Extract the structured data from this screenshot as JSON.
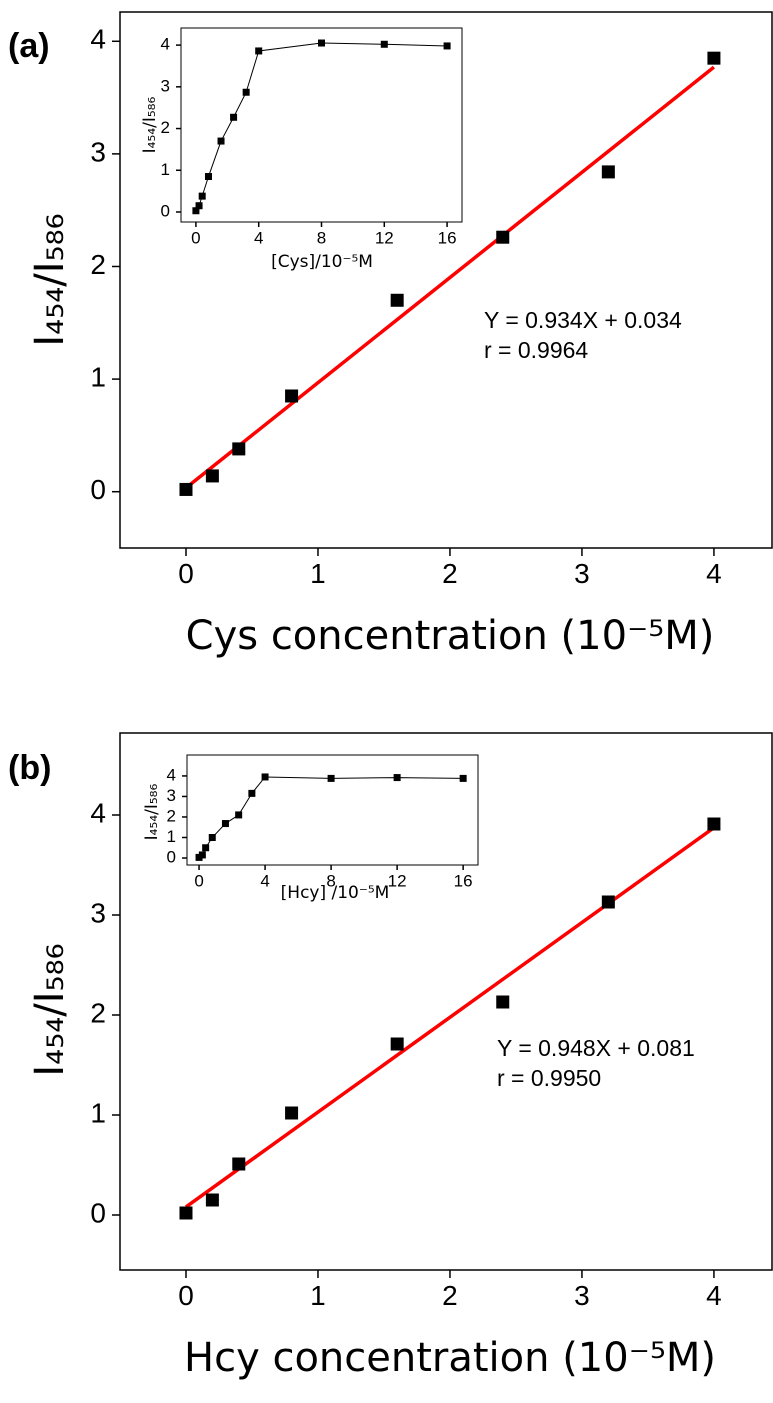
{
  "chart_data": [
    {
      "type": "scatter",
      "panel": "(a)",
      "xlabel": "Cys concentration (10⁻⁵M)",
      "ylabel": "I₄₅₄/I₅₈₆",
      "x": [
        0,
        0.2,
        0.4,
        0.8,
        1.6,
        2.4,
        3.2,
        4
      ],
      "values": [
        0.02,
        0.14,
        0.38,
        0.85,
        1.7,
        2.26,
        2.84,
        3.85
      ],
      "color": "#000000",
      "fit": {
        "slope": 0.934,
        "intercept": 0.034,
        "color": "#ff0000"
      },
      "annotations": [
        "Y = 0.934X + 0.034",
        "r = 0.9964"
      ],
      "xlim": [
        -0.5,
        4.44
      ],
      "xticks": [
        0,
        1,
        2,
        3,
        4
      ],
      "ylim": [
        -0.5,
        4.26
      ],
      "yticks": [
        0,
        1,
        2,
        3,
        4
      ]
    },
    {
      "type": "line",
      "xlabel": "[Cys]/10⁻⁵M",
      "ylabel": "I₄₅₄/I₅₈₆",
      "x": [
        0,
        0.2,
        0.4,
        0.8,
        1.6,
        2.4,
        3.2,
        4,
        8,
        12,
        16
      ],
      "values": [
        0.03,
        0.15,
        0.38,
        0.85,
        1.7,
        2.27,
        2.87,
        3.86,
        4.05,
        4.02,
        3.98
      ],
      "color": "#000000",
      "xlim": [
        -0.95,
        16.95
      ],
      "xticks": [
        0,
        4,
        8,
        12,
        16
      ],
      "ylim": [
        -0.24,
        4.41
      ],
      "yticks": [
        0,
        1,
        2,
        3,
        4
      ]
    },
    {
      "type": "scatter",
      "panel": "(b)",
      "xlabel": "Hcy concentration (10⁻⁵M)",
      "ylabel": "I₄₅₄/I₅₈₆",
      "x": [
        0,
        0.2,
        0.4,
        0.8,
        1.6,
        2.4,
        3.2,
        4
      ],
      "values": [
        0.02,
        0.15,
        0.51,
        1.02,
        1.71,
        2.13,
        3.13,
        3.91
      ],
      "color": "#000000",
      "fit": {
        "slope": 0.948,
        "intercept": 0.081,
        "color": "#ff0000"
      },
      "annotations": [
        "Y = 0.948X + 0.081",
        "r = 0.9950"
      ],
      "xlim": [
        -0.5,
        4.44
      ],
      "xticks": [
        0,
        1,
        2,
        3,
        4
      ],
      "ylim": [
        -0.55,
        4.82
      ],
      "yticks": [
        0,
        1,
        2,
        3,
        4
      ]
    },
    {
      "type": "line",
      "xlabel": "[Hcy] /10⁻⁵M",
      "ylabel": "I₄₅₄/I₅₈₆",
      "x": [
        0,
        0.2,
        0.4,
        0.8,
        1.6,
        2.4,
        3.2,
        4,
        8,
        12,
        16
      ],
      "values": [
        0.03,
        0.15,
        0.5,
        1.0,
        1.68,
        2.1,
        3.15,
        3.95,
        3.88,
        3.92,
        3.88
      ],
      "color": "#000000",
      "xlim": [
        -0.73,
        16.9
      ],
      "xticks": [
        0,
        4,
        8,
        12,
        16
      ],
      "ylim": [
        -0.34,
        5.02
      ],
      "yticks": [
        0,
        1,
        2,
        3,
        4
      ]
    }
  ]
}
